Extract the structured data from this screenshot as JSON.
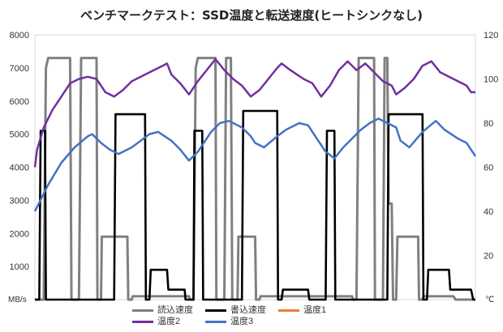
{
  "chart_data": {
    "type": "line",
    "title": "ベンチマークテスト：SSD温度と転送速度(ヒートシンクなし)",
    "y_left_unit": "MB/s",
    "y_right_unit": "℃",
    "y_left_ticks": [
      "8000",
      "7000",
      "6000",
      "5000",
      "4000",
      "3000",
      "2000",
      "1000"
    ],
    "y_right_ticks": [
      "120",
      "100",
      "80",
      "60",
      "40",
      "20"
    ],
    "ylim_left": [
      0,
      8000
    ],
    "ylim_right": [
      0,
      120
    ],
    "grid": false,
    "legend_position": "bottom",
    "series": [
      {
        "name": "読込速度",
        "axis": "left",
        "color": "#808080",
        "points": [
          [
            0,
            0
          ],
          [
            2,
            0
          ],
          [
            2.5,
            7000
          ],
          [
            3,
            7300
          ],
          [
            8,
            7300
          ],
          [
            8.3,
            0
          ],
          [
            10,
            0
          ],
          [
            10.5,
            7300
          ],
          [
            14,
            7300
          ],
          [
            14.2,
            0
          ],
          [
            15,
            0
          ],
          [
            15.2,
            1900
          ],
          [
            21,
            1900
          ],
          [
            21.2,
            0
          ],
          [
            22,
            0
          ],
          [
            22.2,
            100
          ],
          [
            35,
            100
          ],
          [
            35.2,
            0
          ],
          [
            36,
            0
          ],
          [
            36.5,
            7000
          ],
          [
            37,
            7300
          ],
          [
            41,
            7300
          ],
          [
            41.2,
            0
          ],
          [
            43,
            0
          ],
          [
            43.4,
            7300
          ],
          [
            44.5,
            7300
          ],
          [
            44.8,
            0
          ],
          [
            46,
            0
          ],
          [
            46.2,
            1900
          ],
          [
            50,
            1900
          ],
          [
            50.2,
            0
          ],
          [
            51,
            0
          ],
          [
            51.2,
            100
          ],
          [
            72,
            100
          ],
          [
            72.2,
            0
          ],
          [
            73,
            0
          ],
          [
            73.5,
            7300
          ],
          [
            77,
            7300
          ],
          [
            77.2,
            0
          ],
          [
            79,
            0
          ],
          [
            79.4,
            7300
          ],
          [
            80,
            7300
          ],
          [
            80.3,
            2900
          ],
          [
            81,
            2900
          ],
          [
            81.3,
            0
          ],
          [
            82,
            0
          ],
          [
            82.3,
            1900
          ],
          [
            87,
            1900
          ],
          [
            87.2,
            0
          ],
          [
            88,
            0
          ],
          [
            88.2,
            100
          ],
          [
            95,
            100
          ],
          [
            95.5,
            0
          ],
          [
            100,
            0
          ]
        ]
      },
      {
        "name": "書込速度",
        "axis": "left",
        "color": "#000000",
        "points": [
          [
            0,
            0
          ],
          [
            1,
            0
          ],
          [
            1.3,
            5100
          ],
          [
            2.3,
            5100
          ],
          [
            2.5,
            0
          ],
          [
            18,
            0
          ],
          [
            18.3,
            5600
          ],
          [
            25,
            5600
          ],
          [
            25.2,
            0
          ],
          [
            26,
            0
          ],
          [
            26.3,
            900
          ],
          [
            30,
            900
          ],
          [
            30.3,
            300
          ],
          [
            34,
            300
          ],
          [
            34.2,
            0
          ],
          [
            36,
            0
          ],
          [
            36.2,
            5100
          ],
          [
            38,
            5100
          ],
          [
            38.2,
            0
          ],
          [
            47,
            0
          ],
          [
            47.3,
            5700
          ],
          [
            55,
            5700
          ],
          [
            55.2,
            0
          ],
          [
            56,
            0
          ],
          [
            56.3,
            300
          ],
          [
            62,
            300
          ],
          [
            62.3,
            0
          ],
          [
            66,
            0
          ],
          [
            66.3,
            5100
          ],
          [
            68,
            5100
          ],
          [
            68.2,
            0
          ],
          [
            80,
            0
          ],
          [
            80.3,
            5600
          ],
          [
            88,
            5600
          ],
          [
            88.2,
            0
          ],
          [
            89,
            0
          ],
          [
            89.3,
            900
          ],
          [
            94,
            900
          ],
          [
            94.3,
            300
          ],
          [
            99,
            300
          ],
          [
            99.5,
            0
          ],
          [
            100,
            0
          ]
        ]
      },
      {
        "name": "温度1",
        "axis": "right",
        "color": "#ed7d31",
        "points": []
      },
      {
        "name": "温度2",
        "axis": "right",
        "color": "#7030a0",
        "points": [
          [
            0,
            60
          ],
          [
            0.5,
            68
          ],
          [
            2,
            78
          ],
          [
            4,
            86
          ],
          [
            6,
            92
          ],
          [
            8,
            98
          ],
          [
            10,
            100
          ],
          [
            12,
            101
          ],
          [
            14,
            100
          ],
          [
            16,
            94
          ],
          [
            18,
            92
          ],
          [
            20,
            95
          ],
          [
            22,
            99
          ],
          [
            25,
            102
          ],
          [
            27,
            104
          ],
          [
            29,
            106
          ],
          [
            30,
            107
          ],
          [
            31,
            102
          ],
          [
            33,
            98
          ],
          [
            35,
            93
          ],
          [
            37,
            99
          ],
          [
            39,
            104
          ],
          [
            41,
            109
          ],
          [
            43,
            104
          ],
          [
            45,
            100
          ],
          [
            47,
            97
          ],
          [
            49,
            92
          ],
          [
            51,
            95
          ],
          [
            53,
            100
          ],
          [
            55,
            105
          ],
          [
            56,
            107
          ],
          [
            58,
            104
          ],
          [
            61,
            100
          ],
          [
            63,
            98
          ],
          [
            65,
            92
          ],
          [
            67,
            97
          ],
          [
            69,
            104
          ],
          [
            71,
            108
          ],
          [
            73,
            104
          ],
          [
            75,
            107
          ],
          [
            77,
            103
          ],
          [
            79,
            99
          ],
          [
            81,
            97
          ],
          [
            82,
            93
          ],
          [
            84,
            96
          ],
          [
            86,
            100
          ],
          [
            88,
            106
          ],
          [
            90,
            108
          ],
          [
            92,
            103
          ],
          [
            94,
            101
          ],
          [
            96,
            99
          ],
          [
            98,
            97
          ],
          [
            99,
            94
          ],
          [
            100,
            94
          ]
        ]
      },
      {
        "name": "温度3",
        "axis": "right",
        "color": "#4472c4",
        "points": [
          [
            0,
            40
          ],
          [
            3,
            52
          ],
          [
            6,
            62
          ],
          [
            9,
            69
          ],
          [
            12,
            74
          ],
          [
            13,
            75
          ],
          [
            15,
            71
          ],
          [
            17,
            68
          ],
          [
            19,
            66
          ],
          [
            22,
            69
          ],
          [
            26,
            75
          ],
          [
            28,
            76
          ],
          [
            31,
            72
          ],
          [
            33,
            68
          ],
          [
            35,
            63
          ],
          [
            37,
            67
          ],
          [
            40,
            76
          ],
          [
            42,
            80
          ],
          [
            44,
            81
          ],
          [
            47,
            78
          ],
          [
            49,
            74
          ],
          [
            50,
            71
          ],
          [
            52,
            69
          ],
          [
            55,
            74
          ],
          [
            57,
            77
          ],
          [
            60,
            80
          ],
          [
            62,
            79
          ],
          [
            64,
            73
          ],
          [
            66,
            67
          ],
          [
            68,
            64
          ],
          [
            70,
            69
          ],
          [
            74,
            77
          ],
          [
            76,
            80
          ],
          [
            78,
            82
          ],
          [
            80,
            80
          ],
          [
            82,
            78
          ],
          [
            83,
            72
          ],
          [
            85,
            69
          ],
          [
            88,
            76
          ],
          [
            91,
            81
          ],
          [
            93,
            77
          ],
          [
            96,
            73
          ],
          [
            98,
            71
          ],
          [
            100,
            65
          ]
        ]
      }
    ]
  }
}
